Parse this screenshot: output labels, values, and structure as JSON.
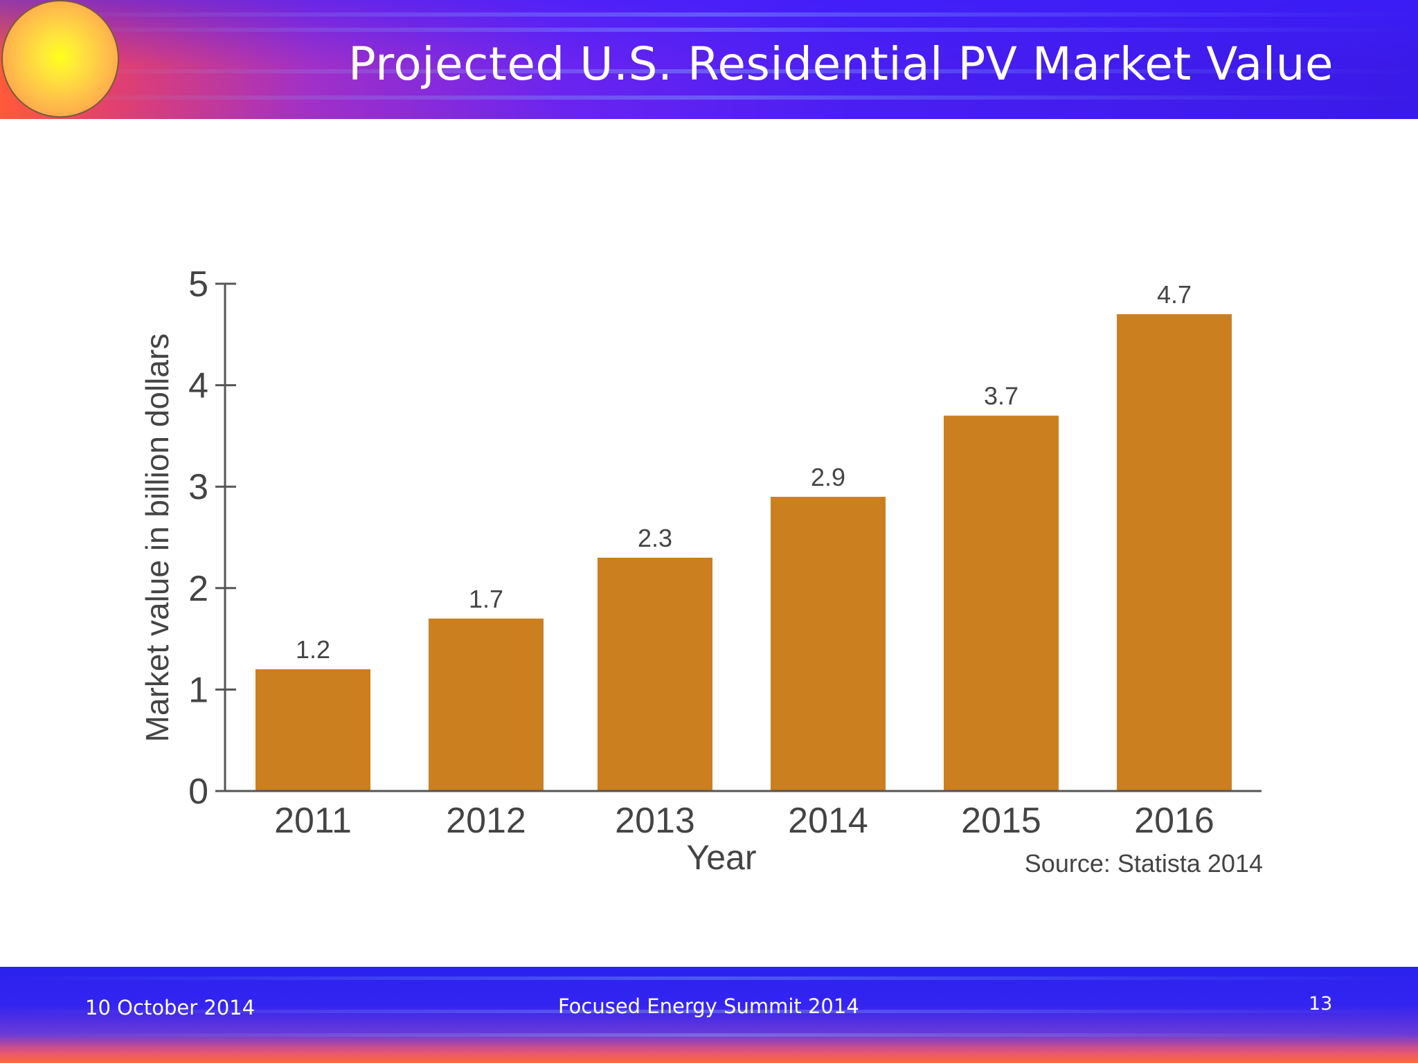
{
  "slide": {
    "title": "Projected U.S. Residential PV Market Value"
  },
  "footer": {
    "date": "10 October 2014",
    "event": "Focused Energy Summit  2014",
    "page_number": "13"
  },
  "colors": {
    "bar": "#cc7f1f",
    "axis": "#555555",
    "text": "#444444"
  },
  "chart_data": {
    "type": "bar",
    "title": "",
    "xlabel": "Year",
    "ylabel": "Market value in billion dollars",
    "categories": [
      "2011",
      "2012",
      "2013",
      "2014",
      "2015",
      "2016"
    ],
    "values": [
      1.2,
      1.7,
      2.3,
      2.9,
      3.7,
      4.7
    ],
    "value_labels": [
      "1.2",
      "1.7",
      "2.3",
      "2.9",
      "3.7",
      "4.7"
    ],
    "ylim": [
      0,
      5
    ],
    "yticks": [
      0,
      1,
      2,
      3,
      4,
      5
    ],
    "grid": false,
    "legend": "none",
    "source": "Source: Statista 2014"
  }
}
